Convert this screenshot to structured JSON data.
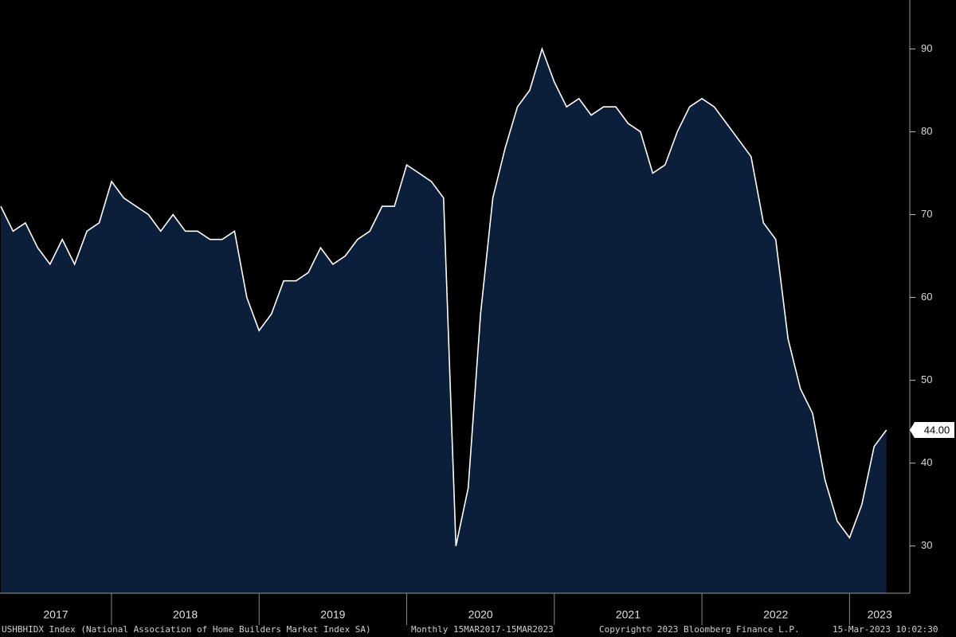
{
  "chart_data": {
    "type": "area",
    "title": "USHBHIDX Index (National Association of Home Builders Market Index SA)",
    "subtitle": "Monthly 15MAR2017-15MAR2023",
    "copyright": "Copyright© 2023 Bloomberg Finance L.P.",
    "timestamp": "15-Mar-2023 10:02:30",
    "x": [
      "2017-03",
      "2017-04",
      "2017-05",
      "2017-06",
      "2017-07",
      "2017-08",
      "2017-09",
      "2017-10",
      "2017-11",
      "2017-12",
      "2018-01",
      "2018-02",
      "2018-03",
      "2018-04",
      "2018-05",
      "2018-06",
      "2018-07",
      "2018-08",
      "2018-09",
      "2018-10",
      "2018-11",
      "2018-12",
      "2019-01",
      "2019-02",
      "2019-03",
      "2019-04",
      "2019-05",
      "2019-06",
      "2019-07",
      "2019-08",
      "2019-09",
      "2019-10",
      "2019-11",
      "2019-12",
      "2020-01",
      "2020-02",
      "2020-03",
      "2020-04",
      "2020-05",
      "2020-06",
      "2020-07",
      "2020-08",
      "2020-09",
      "2020-10",
      "2020-11",
      "2020-12",
      "2021-01",
      "2021-02",
      "2021-03",
      "2021-04",
      "2021-05",
      "2021-06",
      "2021-07",
      "2021-08",
      "2021-09",
      "2021-10",
      "2021-11",
      "2021-12",
      "2022-01",
      "2022-02",
      "2022-03",
      "2022-04",
      "2022-05",
      "2022-06",
      "2022-07",
      "2022-08",
      "2022-09",
      "2022-10",
      "2022-11",
      "2022-12",
      "2023-01",
      "2023-02",
      "2023-03"
    ],
    "series": [
      {
        "color": "#ffffff",
        "fill": "#0b1f3b",
        "values": [
          71,
          68,
          69,
          66,
          64,
          67,
          64,
          68,
          69,
          74,
          72,
          71,
          70,
          68,
          70,
          68,
          68,
          67,
          67,
          68,
          60,
          56,
          58,
          62,
          62,
          63,
          66,
          64,
          65,
          67,
          68,
          71,
          71,
          76,
          75,
          74,
          72,
          30,
          37,
          58,
          72,
          78,
          83,
          85,
          90,
          86,
          83,
          84,
          82,
          83,
          83,
          81,
          80,
          75,
          76,
          80,
          83,
          84,
          83,
          81,
          79,
          77,
          69,
          67,
          55,
          49,
          46,
          38,
          33,
          31,
          35,
          42,
          44
        ]
      }
    ],
    "last_value_label": "44.00",
    "year_labels": [
      "2017",
      "2018",
      "2019",
      "2020",
      "2021",
      "2022",
      "2023"
    ],
    "ylim": [
      24.3,
      95.9
    ],
    "yticks": [
      30,
      40,
      50,
      60,
      70,
      80,
      90
    ]
  }
}
